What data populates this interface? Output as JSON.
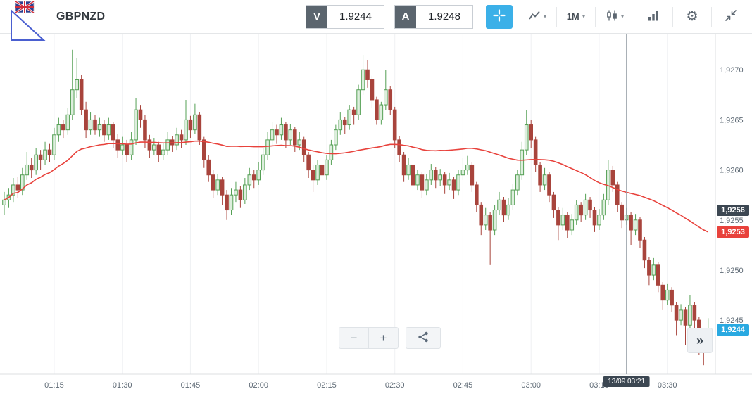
{
  "header": {
    "symbol": "GBPNZD",
    "sell": {
      "label": "V",
      "value": "1.9244"
    },
    "buy": {
      "label": "A",
      "value": "1.9248"
    },
    "timeframe_label": "1M"
  },
  "icons": {
    "gear": "⚙",
    "caret": "▾"
  },
  "overlay": {
    "zoom_out_label": "−",
    "zoom_in_label": "+",
    "expand_label": "»",
    "badges": {
      "reference": "1,9256",
      "ma": "1,9253",
      "current": "1,9244"
    },
    "crosshair_time_label": "13/09 03:21"
  },
  "colors": {
    "accent_blue": "#3bb0e8",
    "candle_up_border": "#55a055",
    "candle_up_fill": "#ddeedd",
    "candle_down": "#a8443c",
    "ma_line": "#e8423c",
    "badge_dark_bg": "#3c4752",
    "badge_red_bg": "#e8423c",
    "badge_blue_bg": "#29a9e1",
    "grid": "#f0f1f3",
    "axis_text": "#5f6b76"
  },
  "chart_data": {
    "type": "candlestick",
    "symbol": "GBPNZD",
    "timeframe": "1M",
    "interval_minutes": 1,
    "start_time": "01:04",
    "x_tick_labels": [
      "01:15",
      "01:30",
      "01:45",
      "02:00",
      "02:15",
      "02:30",
      "02:45",
      "03:00",
      "03:15",
      "03:30"
    ],
    "y_tick_values": [
      1.927,
      1.9265,
      1.926,
      1.9255,
      1.925,
      1.9245
    ],
    "y_tick_labels": [
      "1,9270",
      "1,9265",
      "1,9260",
      "1,9255",
      "1,9250",
      "1,9245"
    ],
    "y_top": 1.92736,
    "y_bottom": 1.92396,
    "reference_price": 1.9256,
    "current_price": 1.9244,
    "crosshair_time": "03:21",
    "ma": {
      "type": "sma",
      "period": 50
    },
    "candles": [
      [
        1.92565,
        1.92578,
        1.92555,
        1.9257
      ],
      [
        1.9257,
        1.92582,
        1.92562,
        1.92575
      ],
      [
        1.92575,
        1.92592,
        1.92568,
        1.92585
      ],
      [
        1.92585,
        1.92593,
        1.92572,
        1.9258
      ],
      [
        1.9258,
        1.92602,
        1.92575,
        1.92595
      ],
      [
        1.92595,
        1.92618,
        1.9259,
        1.92605
      ],
      [
        1.92605,
        1.92612,
        1.92592,
        1.926
      ],
      [
        1.926,
        1.92622,
        1.92595,
        1.92615
      ],
      [
        1.92615,
        1.9262,
        1.926,
        1.9261
      ],
      [
        1.9261,
        1.92628,
        1.92605,
        1.9262
      ],
      [
        1.9262,
        1.92626,
        1.92608,
        1.92615
      ],
      [
        1.92615,
        1.92642,
        1.9261,
        1.92635
      ],
      [
        1.92635,
        1.92652,
        1.92628,
        1.92645
      ],
      [
        1.92645,
        1.9265,
        1.92632,
        1.9264
      ],
      [
        1.9264,
        1.92662,
        1.92635,
        1.92655
      ],
      [
        1.92655,
        1.9272,
        1.9265,
        1.9268
      ],
      [
        1.9268,
        1.92712,
        1.92672,
        1.9269
      ],
      [
        1.9269,
        1.92695,
        1.92655,
        1.9266
      ],
      [
        1.9266,
        1.92668,
        1.92632,
        1.9264
      ],
      [
        1.9264,
        1.92658,
        1.92635,
        1.9265
      ],
      [
        1.9265,
        1.92655,
        1.92635,
        1.9264
      ],
      [
        1.9264,
        1.92652,
        1.92633,
        1.92645
      ],
      [
        1.92645,
        1.9265,
        1.92628,
        1.92635
      ],
      [
        1.92635,
        1.92652,
        1.9263,
        1.92645
      ],
      [
        1.92645,
        1.92648,
        1.92622,
        1.9263
      ],
      [
        1.9263,
        1.92636,
        1.92612,
        1.9262
      ],
      [
        1.9262,
        1.92633,
        1.92615,
        1.92625
      ],
      [
        1.92625,
        1.9263,
        1.92608,
        1.92615
      ],
      [
        1.92615,
        1.92638,
        1.9261,
        1.9263
      ],
      [
        1.9263,
        1.92672,
        1.92625,
        1.9266
      ],
      [
        1.9266,
        1.92665,
        1.92642,
        1.9265
      ],
      [
        1.9265,
        1.92655,
        1.92622,
        1.9263
      ],
      [
        1.9263,
        1.92635,
        1.92612,
        1.9262
      ],
      [
        1.9262,
        1.92632,
        1.92615,
        1.92625
      ],
      [
        1.92625,
        1.92628,
        1.92608,
        1.92615
      ],
      [
        1.92615,
        1.92627,
        1.9261,
        1.9262
      ],
      [
        1.9262,
        1.92638,
        1.92615,
        1.9263
      ],
      [
        1.9263,
        1.92634,
        1.92618,
        1.92625
      ],
      [
        1.92625,
        1.92642,
        1.9262,
        1.92635
      ],
      [
        1.92635,
        1.9264,
        1.92622,
        1.9263
      ],
      [
        1.9263,
        1.9267,
        1.92625,
        1.9265
      ],
      [
        1.9265,
        1.92654,
        1.92632,
        1.9264
      ],
      [
        1.9264,
        1.92666,
        1.92636,
        1.92655
      ],
      [
        1.92655,
        1.92658,
        1.92625,
        1.9263
      ],
      [
        1.9263,
        1.92633,
        1.92602,
        1.9261
      ],
      [
        1.9261,
        1.92615,
        1.92588,
        1.92595
      ],
      [
        1.92595,
        1.926,
        1.92572,
        1.9258
      ],
      [
        1.9258,
        1.92596,
        1.92575,
        1.9259
      ],
      [
        1.9259,
        1.92593,
        1.92565,
        1.92575
      ],
      [
        1.92575,
        1.9258,
        1.9255,
        1.9256
      ],
      [
        1.9256,
        1.92582,
        1.92555,
        1.92575
      ],
      [
        1.92575,
        1.92588,
        1.92568,
        1.9258
      ],
      [
        1.9258,
        1.92584,
        1.92562,
        1.9257
      ],
      [
        1.9257,
        1.92592,
        1.92566,
        1.92585
      ],
      [
        1.92585,
        1.92602,
        1.9258,
        1.92595
      ],
      [
        1.92595,
        1.926,
        1.92582,
        1.9259
      ],
      [
        1.9259,
        1.92608,
        1.92585,
        1.926
      ],
      [
        1.926,
        1.92622,
        1.92595,
        1.92615
      ],
      [
        1.92615,
        1.92638,
        1.9261,
        1.9263
      ],
      [
        1.9263,
        1.92648,
        1.92625,
        1.9264
      ],
      [
        1.9264,
        1.92645,
        1.92626,
        1.92635
      ],
      [
        1.92635,
        1.92652,
        1.9263,
        1.92645
      ],
      [
        1.92645,
        1.92648,
        1.92622,
        1.9263
      ],
      [
        1.9263,
        1.92646,
        1.92625,
        1.9264
      ],
      [
        1.9264,
        1.92643,
        1.92618,
        1.92625
      ],
      [
        1.92625,
        1.92638,
        1.9262,
        1.9263
      ],
      [
        1.9263,
        1.92633,
        1.92608,
        1.92615
      ],
      [
        1.92615,
        1.92618,
        1.92592,
        1.926
      ],
      [
        1.926,
        1.92605,
        1.92578,
        1.9259
      ],
      [
        1.9259,
        1.9261,
        1.92585,
        1.92605
      ],
      [
        1.92605,
        1.92608,
        1.92588,
        1.92595
      ],
      [
        1.92595,
        1.92615,
        1.9259,
        1.9261
      ],
      [
        1.9261,
        1.9263,
        1.92605,
        1.92625
      ],
      [
        1.92625,
        1.92645,
        1.9262,
        1.9264
      ],
      [
        1.9264,
        1.92658,
        1.92635,
        1.9265
      ],
      [
        1.9265,
        1.92653,
        1.92636,
        1.92645
      ],
      [
        1.92645,
        1.92665,
        1.9264,
        1.9266
      ],
      [
        1.9266,
        1.92663,
        1.92645,
        1.92655
      ],
      [
        1.92655,
        1.92685,
        1.9265,
        1.9268
      ],
      [
        1.9268,
        1.92715,
        1.92675,
        1.927
      ],
      [
        1.927,
        1.9271,
        1.92682,
        1.9269
      ],
      [
        1.9269,
        1.92694,
        1.92662,
        1.9267
      ],
      [
        1.9267,
        1.92673,
        1.92645,
        1.9265
      ],
      [
        1.9265,
        1.92668,
        1.92645,
        1.92665
      ],
      [
        1.92665,
        1.927,
        1.9266,
        1.9268
      ],
      [
        1.9268,
        1.92684,
        1.92655,
        1.9266
      ],
      [
        1.9266,
        1.92663,
        1.92622,
        1.9263
      ],
      [
        1.9263,
        1.92634,
        1.92608,
        1.92615
      ],
      [
        1.92615,
        1.92618,
        1.92588,
        1.92595
      ],
      [
        1.92595,
        1.92612,
        1.9259,
        1.92605
      ],
      [
        1.92605,
        1.92608,
        1.92578,
        1.92585
      ],
      [
        1.92585,
        1.926,
        1.9258,
        1.92595
      ],
      [
        1.92595,
        1.92598,
        1.92572,
        1.9258
      ],
      [
        1.9258,
        1.92596,
        1.92575,
        1.9259
      ],
      [
        1.9259,
        1.92606,
        1.92585,
        1.926
      ],
      [
        1.926,
        1.92603,
        1.92582,
        1.9259
      ],
      [
        1.9259,
        1.92601,
        1.92584,
        1.92595
      ],
      [
        1.92595,
        1.92598,
        1.92576,
        1.92585
      ],
      [
        1.92585,
        1.92597,
        1.9258,
        1.9259
      ],
      [
        1.9259,
        1.92593,
        1.92571,
        1.9258
      ],
      [
        1.9258,
        1.926,
        1.92575,
        1.92595
      ],
      [
        1.92595,
        1.92612,
        1.9259,
        1.926
      ],
      [
        1.926,
        1.92614,
        1.92595,
        1.92605
      ],
      [
        1.92605,
        1.92608,
        1.92578,
        1.92585
      ],
      [
        1.92585,
        1.92588,
        1.92558,
        1.92565
      ],
      [
        1.92565,
        1.92568,
        1.92535,
        1.92545
      ],
      [
        1.92545,
        1.92562,
        1.9254,
        1.92555
      ],
      [
        1.92555,
        1.92558,
        1.92505,
        1.9254
      ],
      [
        1.9254,
        1.92565,
        1.92535,
        1.9256
      ],
      [
        1.9256,
        1.92578,
        1.92555,
        1.9257
      ],
      [
        1.9257,
        1.92573,
        1.92548,
        1.92555
      ],
      [
        1.92555,
        1.92572,
        1.9255,
        1.92565
      ],
      [
        1.92565,
        1.92586,
        1.9256,
        1.9258
      ],
      [
        1.9258,
        1.926,
        1.92575,
        1.92595
      ],
      [
        1.92595,
        1.92628,
        1.9259,
        1.9262
      ],
      [
        1.9262,
        1.9266,
        1.92615,
        1.92645
      ],
      [
        1.92645,
        1.9265,
        1.92622,
        1.9263
      ],
      [
        1.9263,
        1.92633,
        1.92598,
        1.92605
      ],
      [
        1.92605,
        1.92608,
        1.92578,
        1.92585
      ],
      [
        1.92585,
        1.92602,
        1.9258,
        1.92595
      ],
      [
        1.92595,
        1.92598,
        1.92568,
        1.92575
      ],
      [
        1.92575,
        1.92578,
        1.92552,
        1.9256
      ],
      [
        1.9256,
        1.92563,
        1.9253,
        1.92545
      ],
      [
        1.92545,
        1.92562,
        1.9254,
        1.92555
      ],
      [
        1.92555,
        1.92558,
        1.92532,
        1.9254
      ],
      [
        1.9254,
        1.92556,
        1.92535,
        1.9255
      ],
      [
        1.9255,
        1.9257,
        1.92545,
        1.92565
      ],
      [
        1.92565,
        1.92568,
        1.92548,
        1.92555
      ],
      [
        1.92555,
        1.92576,
        1.9255,
        1.9257
      ],
      [
        1.9257,
        1.92573,
        1.92552,
        1.9256
      ],
      [
        1.9256,
        1.92563,
        1.92538,
        1.92545
      ],
      [
        1.92545,
        1.92561,
        1.9254,
        1.92555
      ],
      [
        1.92555,
        1.92576,
        1.9255,
        1.9257
      ],
      [
        1.9257,
        1.9261,
        1.92565,
        1.926
      ],
      [
        1.926,
        1.92604,
        1.92578,
        1.92585
      ],
      [
        1.92585,
        1.92588,
        1.92558,
        1.92565
      ],
      [
        1.92565,
        1.92568,
        1.92542,
        1.9255
      ],
      [
        1.9255,
        1.92562,
        1.92545,
        1.92555
      ],
      [
        1.92555,
        1.92558,
        1.92525,
        1.9254
      ],
      [
        1.9254,
        1.92556,
        1.92535,
        1.9255
      ],
      [
        1.9255,
        1.92553,
        1.92522,
        1.9253
      ],
      [
        1.9253,
        1.92533,
        1.92502,
        1.9251
      ],
      [
        1.9251,
        1.92513,
        1.92485,
        1.92495
      ],
      [
        1.92495,
        1.92512,
        1.9249,
        1.92505
      ],
      [
        1.92505,
        1.92508,
        1.92478,
        1.92485
      ],
      [
        1.92485,
        1.92488,
        1.9246,
        1.9247
      ],
      [
        1.9247,
        1.92486,
        1.92465,
        1.9248
      ],
      [
        1.9248,
        1.92483,
        1.92458,
        1.92465
      ],
      [
        1.92465,
        1.92468,
        1.92435,
        1.9245
      ],
      [
        1.9245,
        1.92466,
        1.92445,
        1.9246
      ],
      [
        1.9246,
        1.92463,
        1.92425,
        1.92445
      ],
      [
        1.92445,
        1.92475,
        1.9244,
        1.92465
      ],
      [
        1.92465,
        1.92468,
        1.92442,
        1.9245
      ],
      [
        1.9245,
        1.92453,
        1.92415,
        1.92435
      ],
      [
        1.92435,
        1.92438,
        1.92405,
        1.92425
      ],
      [
        1.92425,
        1.92452,
        1.9242,
        1.9244
      ]
    ]
  }
}
